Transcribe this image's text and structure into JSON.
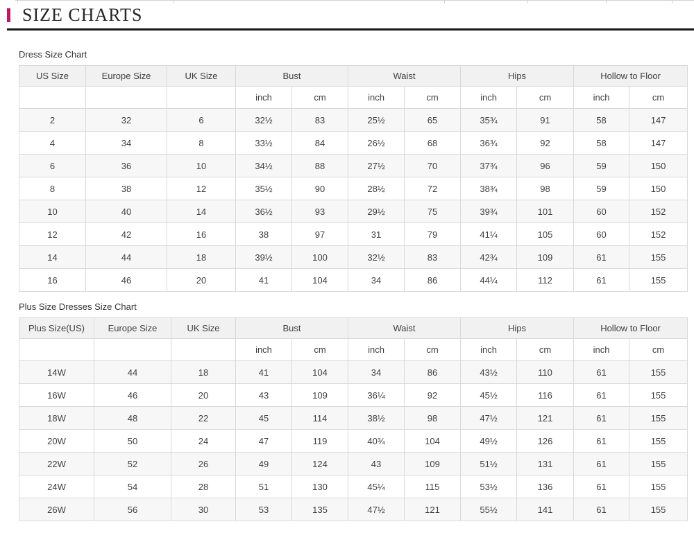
{
  "accent_color": "#c4155f",
  "header": {
    "title": "SIZE CHARTS"
  },
  "units": [
    "inch",
    "cm"
  ],
  "size_chart": {
    "caption": "Dress Size Chart",
    "id_columns": [
      "US Size",
      "Europe Size",
      "UK Size"
    ],
    "measure_columns": [
      "Bust",
      "Waist",
      "Hips",
      "Hollow to Floor"
    ],
    "rows": [
      [
        "2",
        "32",
        "6",
        "32½",
        "83",
        "25½",
        "65",
        "35¾",
        "91",
        "58",
        "147"
      ],
      [
        "4",
        "34",
        "8",
        "33½",
        "84",
        "26½",
        "68",
        "36¾",
        "92",
        "58",
        "147"
      ],
      [
        "6",
        "36",
        "10",
        "34½",
        "88",
        "27½",
        "70",
        "37¾",
        "96",
        "59",
        "150"
      ],
      [
        "8",
        "38",
        "12",
        "35½",
        "90",
        "28½",
        "72",
        "38¾",
        "98",
        "59",
        "150"
      ],
      [
        "10",
        "40",
        "14",
        "36½",
        "93",
        "29½",
        "75",
        "39¾",
        "101",
        "60",
        "152"
      ],
      [
        "12",
        "42",
        "16",
        "38",
        "97",
        "31",
        "79",
        "41¼",
        "105",
        "60",
        "152"
      ],
      [
        "14",
        "44",
        "18",
        "39½",
        "100",
        "32½",
        "83",
        "42¾",
        "109",
        "61",
        "155"
      ],
      [
        "16",
        "46",
        "20",
        "41",
        "104",
        "34",
        "86",
        "44¼",
        "112",
        "61",
        "155"
      ]
    ]
  },
  "plus_size_chart": {
    "caption": "Plus Size Dresses Size Chart",
    "id_columns": [
      "Plus Size(US)",
      "Europe Size",
      "UK Size"
    ],
    "measure_columns": [
      "Bust",
      "Waist",
      "Hips",
      "Hollow to Floor"
    ],
    "rows": [
      [
        "14W",
        "44",
        "18",
        "41",
        "104",
        "34",
        "86",
        "43½",
        "110",
        "61",
        "155"
      ],
      [
        "16W",
        "46",
        "20",
        "43",
        "109",
        "36¼",
        "92",
        "45½",
        "116",
        "61",
        "155"
      ],
      [
        "18W",
        "48",
        "22",
        "45",
        "114",
        "38½",
        "98",
        "47½",
        "121",
        "61",
        "155"
      ],
      [
        "20W",
        "50",
        "24",
        "47",
        "119",
        "40¾",
        "104",
        "49½",
        "126",
        "61",
        "155"
      ],
      [
        "22W",
        "52",
        "26",
        "49",
        "124",
        "43",
        "109",
        "51½",
        "131",
        "61",
        "155"
      ],
      [
        "24W",
        "54",
        "28",
        "51",
        "130",
        "45¼",
        "115",
        "53½",
        "136",
        "61",
        "155"
      ],
      [
        "26W",
        "56",
        "30",
        "53",
        "135",
        "47½",
        "121",
        "55½",
        "141",
        "61",
        "155"
      ]
    ]
  }
}
